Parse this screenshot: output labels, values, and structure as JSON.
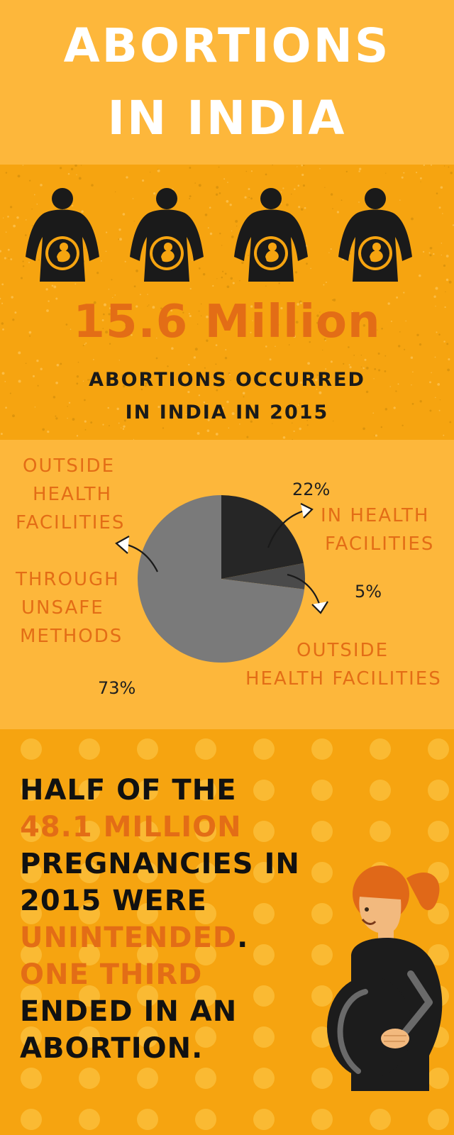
{
  "title": {
    "line1": "ABORTIONS",
    "line2": "IN INDIA"
  },
  "stats": {
    "figures": [
      "pregnant-woman-icon",
      "pregnant-woman-icon",
      "pregnant-woman-icon",
      "pregnant-woman-icon"
    ],
    "headline": "15.6 Million",
    "caption_line1": "ABORTIONS OCCURRED",
    "caption_line2": "IN INDIA IN 2015"
  },
  "breakdown": {
    "slices": [
      {
        "value": 22,
        "percent_label": "22%",
        "label_line1": "IN HEALTH",
        "label_line2": "FACILITIES",
        "color": "#262626"
      },
      {
        "value": 5,
        "percent_label": "5%",
        "label_line1": "OUTSIDE",
        "label_line2": "HEALTH FACILITIES",
        "color": "#4a4a4a"
      },
      {
        "value": 73,
        "percent_label": "73%",
        "color": "#7a7a7a"
      }
    ],
    "left_label_top": [
      "OUTSIDE",
      "HEALTH",
      "FACILITIES"
    ],
    "left_label_bottom": [
      "THROUGH",
      "UNSAFE",
      "METHODS"
    ]
  },
  "message": {
    "lines": [
      {
        "text": "HALF OF THE",
        "tone": "black"
      },
      {
        "text": "48.1 MILLION",
        "tone": "orange"
      },
      {
        "text": "PREGNANCIES IN",
        "tone": "black"
      },
      {
        "text": "2015 WERE",
        "tone": "black"
      },
      {
        "text": "UNINTENDED",
        "tone": "orange",
        "suffix": "."
      },
      {
        "text": "ONE THIRD",
        "tone": "orange"
      },
      {
        "text": "ENDED IN AN",
        "tone": "black"
      },
      {
        "text": "ABORTION.",
        "tone": "black"
      }
    ],
    "icon": "pregnant-woman-icon"
  },
  "colors": {
    "accent_orange": "#e36d16",
    "band_light": "#fdb73b",
    "band_dark": "#f6a410",
    "black": "#111111"
  }
}
